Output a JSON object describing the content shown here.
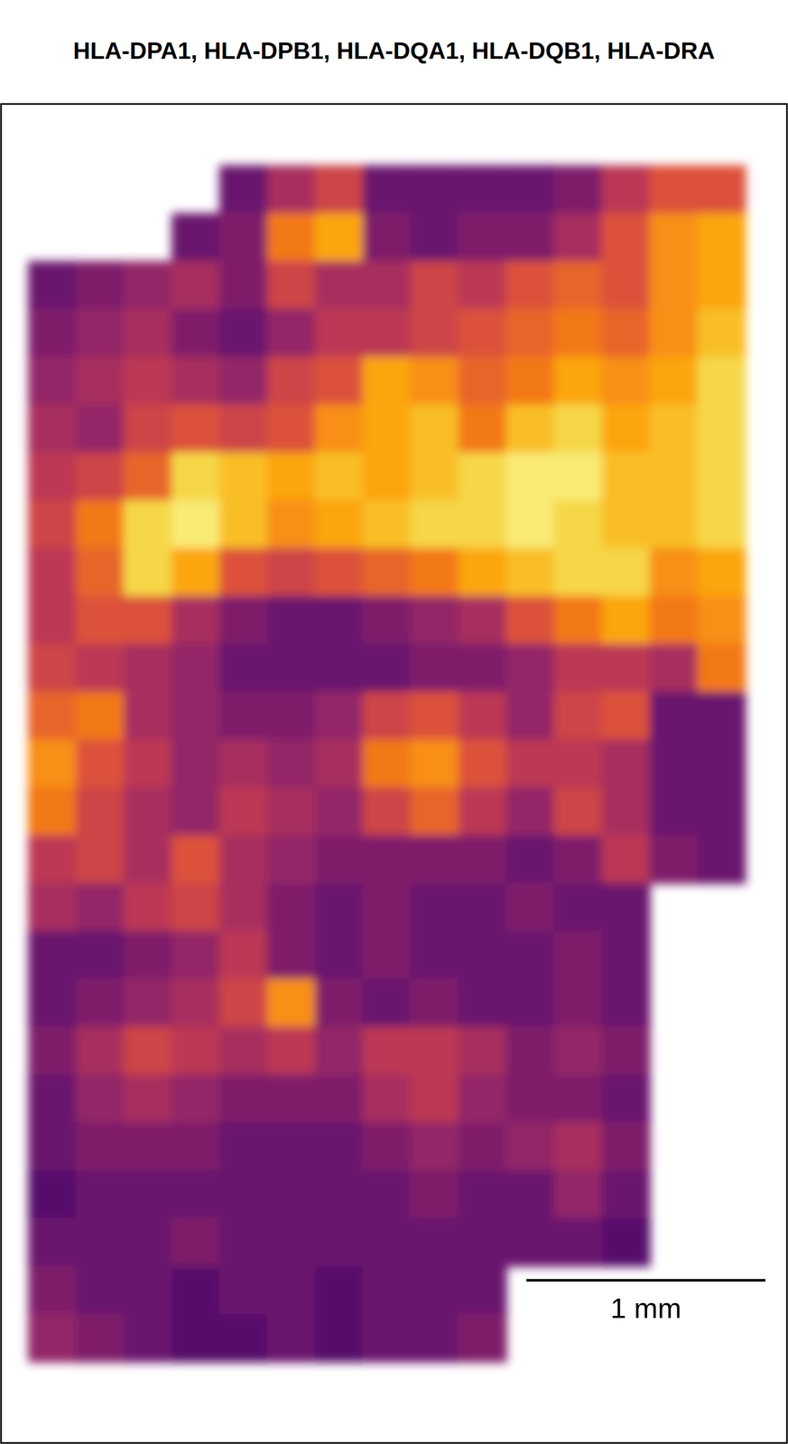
{
  "chart_data": {
    "type": "heatmap",
    "title": "HLA-DPA1, HLA-DPB1, HLA-DQA1, HLA-DQB1, HLA-DRA",
    "x": [
      0.1,
      0.3,
      0.5,
      0.7,
      0.9,
      1.1,
      1.3,
      1.5,
      1.7,
      1.9,
      2.1,
      2.3,
      2.5,
      2.7,
      2.9
    ],
    "y": [
      0.1,
      0.3,
      0.5,
      0.7,
      0.9,
      1.1,
      1.3,
      1.5,
      1.7,
      1.9,
      2.1,
      2.3,
      2.5,
      2.7,
      2.9,
      3.1,
      3.3,
      3.5,
      3.7,
      3.9,
      4.1,
      4.3,
      4.5,
      4.7,
      4.9
    ],
    "values": [
      [
        null,
        null,
        null,
        null,
        0.3,
        0.45,
        0.55,
        0.3,
        0.3,
        0.3,
        0.3,
        0.35,
        0.5,
        0.6,
        0.6
      ],
      [
        null,
        null,
        null,
        0.3,
        0.35,
        0.7,
        0.8,
        0.35,
        0.3,
        0.35,
        0.35,
        0.45,
        0.6,
        0.75,
        0.8
      ],
      [
        0.3,
        0.35,
        0.4,
        0.45,
        0.35,
        0.55,
        0.45,
        0.45,
        0.55,
        0.5,
        0.6,
        0.65,
        0.6,
        0.75,
        0.8
      ],
      [
        0.35,
        0.4,
        0.45,
        0.35,
        0.3,
        0.4,
        0.5,
        0.5,
        0.55,
        0.6,
        0.65,
        0.7,
        0.65,
        0.75,
        0.85
      ],
      [
        0.4,
        0.45,
        0.5,
        0.45,
        0.4,
        0.55,
        0.6,
        0.8,
        0.75,
        0.65,
        0.7,
        0.8,
        0.75,
        0.8,
        0.9
      ],
      [
        0.45,
        0.4,
        0.55,
        0.6,
        0.55,
        0.6,
        0.75,
        0.8,
        0.85,
        0.7,
        0.85,
        0.9,
        0.8,
        0.85,
        0.9
      ],
      [
        0.5,
        0.55,
        0.65,
        0.9,
        0.85,
        0.8,
        0.85,
        0.8,
        0.85,
        0.9,
        0.95,
        0.95,
        0.85,
        0.85,
        0.9
      ],
      [
        0.55,
        0.7,
        0.9,
        0.95,
        0.85,
        0.75,
        0.8,
        0.85,
        0.9,
        0.9,
        0.95,
        0.9,
        0.85,
        0.85,
        0.9
      ],
      [
        0.5,
        0.65,
        0.9,
        0.8,
        0.6,
        0.55,
        0.6,
        0.65,
        0.7,
        0.8,
        0.85,
        0.9,
        0.9,
        0.75,
        0.8
      ],
      [
        0.5,
        0.6,
        0.6,
        0.45,
        0.35,
        0.3,
        0.3,
        0.35,
        0.4,
        0.45,
        0.6,
        0.7,
        0.8,
        0.7,
        0.75
      ],
      [
        0.55,
        0.5,
        0.45,
        0.4,
        0.3,
        0.3,
        0.3,
        0.3,
        0.35,
        0.35,
        0.4,
        0.5,
        0.5,
        0.45,
        0.7
      ],
      [
        0.65,
        0.7,
        0.45,
        0.4,
        0.35,
        0.35,
        0.4,
        0.55,
        0.6,
        0.5,
        0.4,
        0.55,
        0.6,
        0.3,
        0.3
      ],
      [
        0.75,
        0.6,
        0.5,
        0.4,
        0.45,
        0.4,
        0.45,
        0.7,
        0.75,
        0.6,
        0.5,
        0.5,
        0.45,
        0.3,
        0.3
      ],
      [
        0.7,
        0.55,
        0.45,
        0.4,
        0.5,
        0.45,
        0.4,
        0.55,
        0.65,
        0.5,
        0.4,
        0.55,
        0.45,
        0.3,
        0.3
      ],
      [
        0.5,
        0.55,
        0.45,
        0.6,
        0.45,
        0.4,
        0.35,
        0.35,
        0.35,
        0.35,
        0.3,
        0.35,
        0.5,
        0.35,
        0.3
      ],
      [
        0.45,
        0.4,
        0.5,
        0.55,
        0.45,
        0.35,
        0.3,
        0.35,
        0.3,
        0.3,
        0.35,
        0.3,
        0.3,
        null,
        null
      ],
      [
        0.3,
        0.3,
        0.35,
        0.4,
        0.5,
        0.35,
        0.3,
        0.35,
        0.3,
        0.3,
        0.3,
        0.35,
        0.3,
        null,
        null
      ],
      [
        0.3,
        0.35,
        0.4,
        0.45,
        0.55,
        0.75,
        0.35,
        0.3,
        0.35,
        0.3,
        0.3,
        0.35,
        0.3,
        null,
        null
      ],
      [
        0.35,
        0.45,
        0.55,
        0.5,
        0.45,
        0.5,
        0.4,
        0.5,
        0.5,
        0.45,
        0.35,
        0.4,
        0.35,
        null,
        null
      ],
      [
        0.3,
        0.4,
        0.45,
        0.4,
        0.35,
        0.35,
        0.35,
        0.45,
        0.5,
        0.4,
        0.35,
        0.35,
        0.3,
        null,
        null
      ],
      [
        0.3,
        0.35,
        0.35,
        0.35,
        0.3,
        0.3,
        0.3,
        0.35,
        0.4,
        0.35,
        0.4,
        0.45,
        0.35,
        null,
        null
      ],
      [
        0.25,
        0.3,
        0.3,
        0.3,
        0.3,
        0.3,
        0.3,
        0.3,
        0.35,
        0.3,
        0.3,
        0.4,
        0.3,
        null,
        null
      ],
      [
        0.3,
        0.3,
        0.3,
        0.35,
        0.3,
        0.3,
        0.3,
        0.3,
        0.3,
        0.3,
        0.3,
        0.3,
        0.25,
        null,
        null
      ],
      [
        0.35,
        0.3,
        0.3,
        0.25,
        0.3,
        0.3,
        0.25,
        0.3,
        0.3,
        0.3,
        null,
        null,
        null,
        null,
        null
      ],
      [
        0.4,
        0.35,
        0.3,
        0.25,
        0.25,
        0.3,
        0.25,
        0.3,
        0.3,
        0.35,
        null,
        null,
        null,
        null,
        null
      ]
    ],
    "xlim": [
      -0.115,
      3.173
    ],
    "ylim": [
      -0.258,
      5.338
    ],
    "zlim": [
      0,
      1
    ],
    "color": "inferno",
    "tick_labels": false,
    "scale_bar": {
      "length": 1,
      "label": "1 mm"
    }
  }
}
